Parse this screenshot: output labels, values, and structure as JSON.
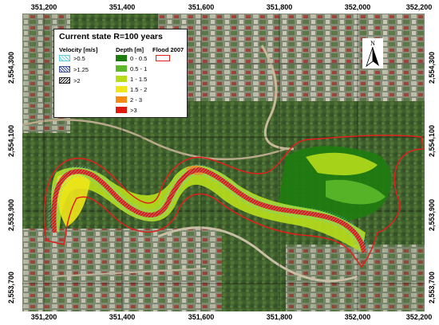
{
  "map": {
    "x_ticks": [
      "351,200",
      "351,400",
      "351,600",
      "351,800",
      "352,000",
      "352,200"
    ],
    "y_ticks": [
      "2,554,300",
      "2,554,100",
      "2,553,900",
      "2,553,700"
    ]
  },
  "legend": {
    "title": "Current state R=100 years",
    "velocity_header": "Velocity [m/s]",
    "depth_header": "Depth [m]",
    "flood_header": "Flood 2007",
    "velocity_items": [
      {
        "label": ">0.5",
        "pattern": "light-hatch",
        "color": "#5ad0e6"
      },
      {
        "label": ">1.25",
        "pattern": "cross-hatch",
        "color": "#4050a0"
      },
      {
        "label": ">2",
        "pattern": "dense-hatch",
        "color": "#222222"
      }
    ],
    "depth_items": [
      {
        "label": "0 - 0.5",
        "color": "#1e7d0f"
      },
      {
        "label": "0.5 - 1",
        "color": "#5cb82a"
      },
      {
        "label": "1 - 1.5",
        "color": "#b6dc1c"
      },
      {
        "label": "1.5 - 2",
        "color": "#f0e61a"
      },
      {
        "label": "2 - 3",
        "color": "#f58b12"
      },
      {
        "label": ">3",
        "color": "#e01b0e"
      }
    ],
    "flood_color": "#e0201a"
  },
  "north_arrow": {
    "label": "N",
    "icon": "north-arrow-icon"
  }
}
